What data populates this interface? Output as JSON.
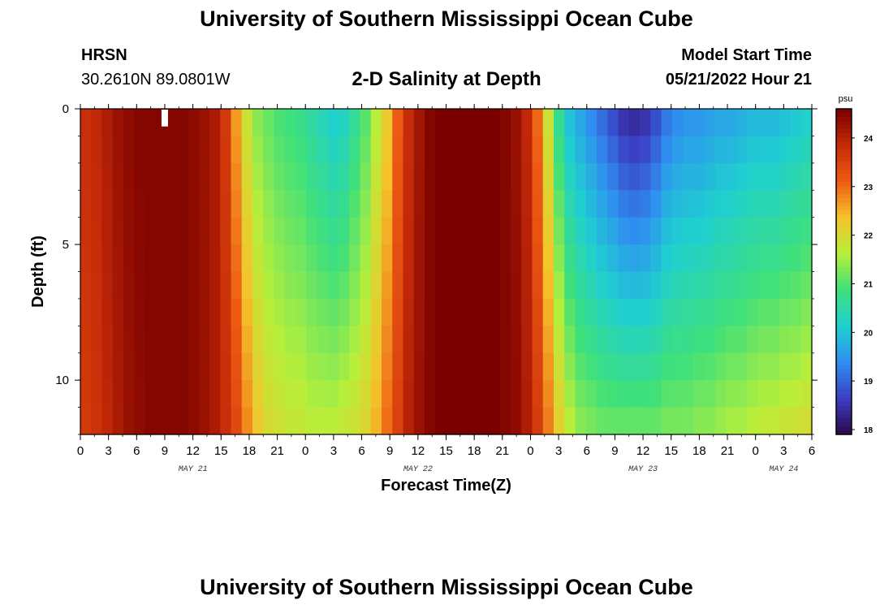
{
  "header": {
    "title": "University of Southern Mississippi Ocean Cube",
    "station": "HRSN",
    "coords": "30.2610N  89.0801W",
    "subtitle": "2-D Salinity at Depth",
    "model_label": "Model Start Time",
    "model_time": "05/21/2022 Hour 21"
  },
  "footer": {
    "title": "University of Southern Mississippi Ocean Cube"
  },
  "colors": {
    "scale": [
      "#2a0a4a",
      "#3b3ec4",
      "#2f8ff0",
      "#1fd0d0",
      "#3fe07a",
      "#b8ef3a",
      "#f5c22a",
      "#ee5a14",
      "#c42a08",
      "#7a0000"
    ]
  },
  "chart_data": {
    "type": "heatmap",
    "xlabel": "Forecast Time(Z)",
    "ylabel": "Depth (ft)",
    "x_range_hours": [
      0,
      78
    ],
    "x_tick_hours": [
      0,
      3,
      6,
      9,
      12,
      15,
      18,
      21,
      24,
      27,
      30,
      33,
      36,
      39,
      42,
      45,
      48,
      51,
      54,
      57,
      60,
      63,
      66,
      69,
      72,
      75,
      78
    ],
    "x_tick_labels": [
      "0",
      "3",
      "6",
      "9",
      "12",
      "15",
      "18",
      "21",
      "0",
      "3",
      "6",
      "9",
      "12",
      "15",
      "18",
      "21",
      "0",
      "3",
      "6",
      "9",
      "12",
      "15",
      "18",
      "21",
      "0",
      "3",
      "6"
    ],
    "day_labels": [
      {
        "hour": 12,
        "text": "MAY 21"
      },
      {
        "hour": 36,
        "text": "MAY 22"
      },
      {
        "hour": 60,
        "text": "MAY 23"
      },
      {
        "hour": 75,
        "text": "MAY 24"
      }
    ],
    "y_range_ft": [
      0,
      12
    ],
    "y_ticks": [
      0,
      5,
      10
    ],
    "colorbar": {
      "unit": "psu",
      "min": 17.9,
      "max": 24.6,
      "ticks": [
        18,
        19,
        20,
        21,
        22,
        23,
        24
      ]
    },
    "salinity_psu_surface": [
      23.8,
      23.9,
      24.1,
      24.3,
      24.4,
      24.5,
      24.5,
      24.5,
      24.5,
      24.5,
      24.4,
      24.3,
      24.1,
      23.6,
      22.6,
      21.8,
      21.3,
      21.1,
      20.9,
      20.8,
      20.7,
      20.5,
      20.3,
      20.1,
      20.2,
      20.6,
      21.0,
      21.6,
      22.2,
      23.1,
      23.8,
      24.2,
      24.5,
      24.6,
      24.6,
      24.6,
      24.6,
      24.6,
      24.6,
      24.5,
      24.3,
      23.9,
      23.0,
      21.8,
      20.6,
      19.9,
      19.6,
      19.3,
      19.0,
      18.7,
      18.4,
      18.3,
      18.4,
      18.7,
      19.1,
      19.3,
      19.4,
      19.4,
      19.5,
      19.6,
      19.6,
      19.7,
      19.8,
      19.8,
      19.8,
      19.9,
      20.0,
      20.1
    ],
    "salinity_psu_bottom": [
      23.6,
      23.7,
      23.9,
      24.1,
      24.3,
      24.4,
      24.5,
      24.5,
      24.5,
      24.5,
      24.4,
      24.3,
      24.1,
      23.8,
      23.4,
      22.8,
      22.3,
      22.0,
      21.9,
      21.8,
      21.8,
      21.7,
      21.7,
      21.7,
      21.8,
      21.9,
      22.1,
      22.5,
      23.0,
      23.5,
      24.0,
      24.3,
      24.5,
      24.6,
      24.6,
      24.6,
      24.6,
      24.6,
      24.6,
      24.5,
      24.4,
      24.1,
      23.6,
      22.9,
      22.2,
      21.7,
      21.4,
      21.3,
      21.2,
      21.2,
      21.2,
      21.2,
      21.2,
      21.2,
      21.3,
      21.3,
      21.3,
      21.4,
      21.4,
      21.5,
      21.6,
      21.6,
      21.7,
      21.8,
      21.8,
      21.9,
      21.9,
      22.0
    ],
    "depth_levels": 12
  },
  "marker": {
    "hour": 9,
    "depth_ft": 0.5
  }
}
